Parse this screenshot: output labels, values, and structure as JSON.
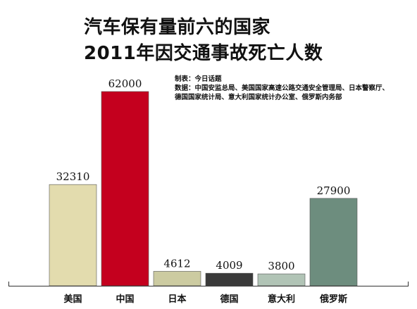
{
  "title_line1": "汽车保有量前六的国家",
  "title_line2": "2011年因交通事故死亡人数",
  "source_line1": "制表：今日话题",
  "source_line2": "数据：中国安监总局、美国国家高速公路交通安全管理局、日本警察厅、",
  "source_line3": "德国国家统计局、意大利国家统计办公室、俄罗斯内务部",
  "chart_data": {
    "type": "bar",
    "categories": [
      "美国",
      "中国",
      "日本",
      "德国",
      "意大利",
      "俄罗斯"
    ],
    "values": [
      32310,
      62000,
      4612,
      4009,
      3800,
      27900
    ],
    "colors": [
      "#e3dcae",
      "#c4001e",
      "#cccba1",
      "#3a3a3a",
      "#b1c4b6",
      "#6d8d7e"
    ],
    "ylim": [
      0,
      62000
    ],
    "grid": false,
    "legend": "none"
  }
}
